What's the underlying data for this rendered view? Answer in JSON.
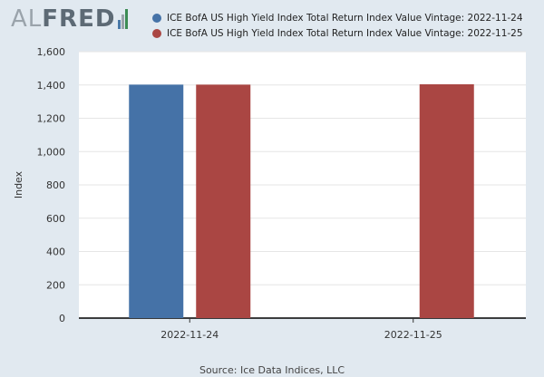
{
  "logo": {
    "text_al": "AL",
    "text_fred": "FRED",
    "bar_colors": [
      "#4a7aa9",
      "#9aa3ab",
      "#3b8b54"
    ]
  },
  "chart_data": {
    "type": "bar",
    "categories": [
      "2022-11-24",
      "2022-11-25"
    ],
    "series": [
      {
        "name": "ICE BofA US High Yield Index Total Return Index Value Vintage: 2022-11-24",
        "color": "#4572a7",
        "values": [
          1402,
          null
        ]
      },
      {
        "name": "ICE BofA US High Yield Index Total Return Index Value Vintage: 2022-11-25",
        "color": "#aa4643",
        "values": [
          1402,
          1404
        ]
      }
    ],
    "ylabel": "Index",
    "xlabel": "",
    "ylim": [
      0,
      1600
    ],
    "yticks": [
      0,
      200,
      400,
      600,
      800,
      1000,
      1200,
      1400,
      1600
    ],
    "ytick_labels": [
      "0",
      "200",
      "400",
      "600",
      "800",
      "1,000",
      "1,200",
      "1,400",
      "1,600"
    ],
    "grid": true,
    "legend_position": "top"
  },
  "source": "Source: Ice Data Indices, LLC"
}
